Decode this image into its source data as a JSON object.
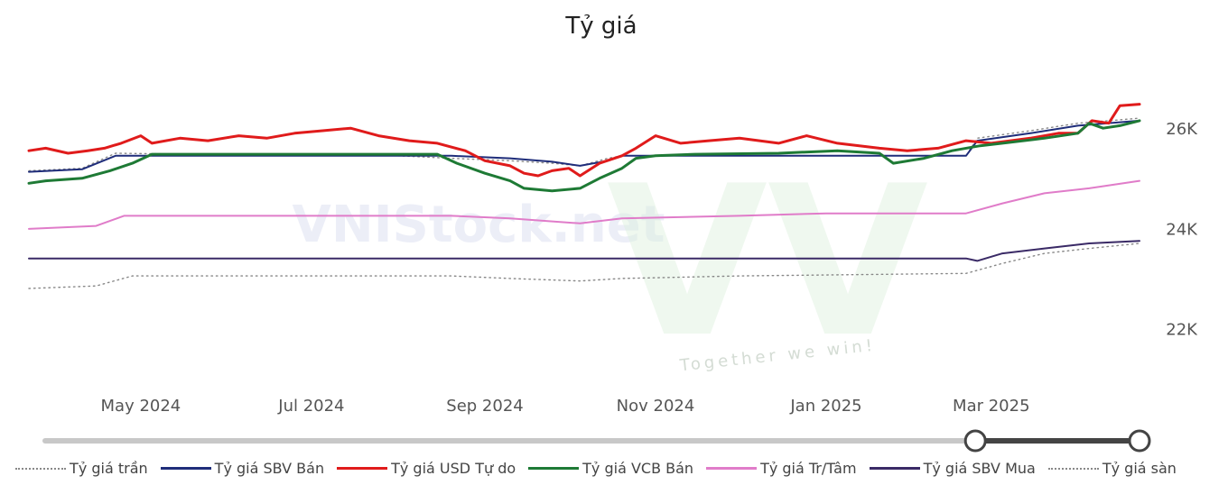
{
  "chart_data": {
    "type": "line",
    "title": "Tỷ giá",
    "xlabel": "",
    "ylabel": "",
    "x_range": [
      "2024-03-22",
      "2025-04-23"
    ],
    "ylim": [
      21000,
      27300
    ],
    "y_ticks": [
      {
        "value": 22000,
        "label": "22K"
      },
      {
        "value": 24000,
        "label": "24K"
      },
      {
        "value": 26000,
        "label": "26K"
      }
    ],
    "x_ticks": [
      {
        "date": "2024-05-01",
        "label": "May 2024"
      },
      {
        "date": "2024-07-01",
        "label": "Jul 2024"
      },
      {
        "date": "2024-09-01",
        "label": "Sep 2024"
      },
      {
        "date": "2024-11-01",
        "label": "Nov 2024"
      },
      {
        "date": "2025-01-01",
        "label": "Jan 2025"
      },
      {
        "date": "2025-03-01",
        "label": "Mar 2025"
      }
    ],
    "grid": false,
    "legend_position": "bottom",
    "series": [
      {
        "name": "Tỷ giá trần",
        "color": "#888888",
        "style": "dotted",
        "width": 1.4,
        "points": [
          [
            "2024-03-22",
            25150
          ],
          [
            "2024-04-10",
            25200
          ],
          [
            "2024-04-22",
            25500
          ],
          [
            "2024-07-01",
            25450
          ],
          [
            "2024-08-01",
            25450
          ],
          [
            "2024-08-20",
            25400
          ],
          [
            "2024-09-10",
            25350
          ],
          [
            "2024-09-25",
            25300
          ],
          [
            "2024-10-05",
            25250
          ],
          [
            "2024-10-15",
            25400
          ],
          [
            "2024-10-20",
            25450
          ],
          [
            "2025-02-20",
            25450
          ],
          [
            "2025-02-24",
            25800
          ],
          [
            "2025-03-15",
            25950
          ],
          [
            "2025-04-01",
            26100
          ],
          [
            "2025-04-23",
            26200
          ]
        ]
      },
      {
        "name": "Tỷ giá SBV Bán",
        "color": "#1f2d7a",
        "style": "solid",
        "width": 2,
        "points": [
          [
            "2024-03-22",
            25130
          ],
          [
            "2024-04-10",
            25180
          ],
          [
            "2024-04-22",
            25450
          ],
          [
            "2024-08-20",
            25450
          ],
          [
            "2024-09-10",
            25400
          ],
          [
            "2024-09-25",
            25330
          ],
          [
            "2024-10-05",
            25250
          ],
          [
            "2024-10-15",
            25350
          ],
          [
            "2024-10-20",
            25450
          ],
          [
            "2025-02-20",
            25450
          ],
          [
            "2025-02-24",
            25750
          ],
          [
            "2025-03-15",
            25900
          ],
          [
            "2025-04-01",
            26050
          ],
          [
            "2025-04-23",
            26150
          ]
        ]
      },
      {
        "name": "Tỷ giá USD Tự do",
        "color": "#e01b1b",
        "style": "solid",
        "width": 3,
        "points": [
          [
            "2024-03-22",
            25550
          ],
          [
            "2024-03-28",
            25600
          ],
          [
            "2024-04-05",
            25500
          ],
          [
            "2024-04-12",
            25550
          ],
          [
            "2024-04-18",
            25600
          ],
          [
            "2024-04-24",
            25700
          ],
          [
            "2024-05-01",
            25850
          ],
          [
            "2024-05-05",
            25700
          ],
          [
            "2024-05-15",
            25800
          ],
          [
            "2024-05-25",
            25750
          ],
          [
            "2024-06-05",
            25850
          ],
          [
            "2024-06-15",
            25800
          ],
          [
            "2024-06-25",
            25900
          ],
          [
            "2024-07-05",
            25950
          ],
          [
            "2024-07-15",
            26000
          ],
          [
            "2024-07-25",
            25850
          ],
          [
            "2024-08-05",
            25750
          ],
          [
            "2024-08-15",
            25700
          ],
          [
            "2024-08-25",
            25550
          ],
          [
            "2024-09-01",
            25350
          ],
          [
            "2024-09-10",
            25250
          ],
          [
            "2024-09-15",
            25100
          ],
          [
            "2024-09-20",
            25050
          ],
          [
            "2024-09-25",
            25150
          ],
          [
            "2024-10-01",
            25200
          ],
          [
            "2024-10-05",
            25050
          ],
          [
            "2024-10-12",
            25300
          ],
          [
            "2024-10-20",
            25450
          ],
          [
            "2024-10-25",
            25600
          ],
          [
            "2024-11-01",
            25850
          ],
          [
            "2024-11-10",
            25700
          ],
          [
            "2024-11-20",
            25750
          ],
          [
            "2024-12-01",
            25800
          ],
          [
            "2024-12-15",
            25700
          ],
          [
            "2024-12-25",
            25850
          ],
          [
            "2025-01-05",
            25700
          ],
          [
            "2025-01-20",
            25600
          ],
          [
            "2025-01-30",
            25550
          ],
          [
            "2025-02-10",
            25600
          ],
          [
            "2025-02-20",
            25750
          ],
          [
            "2025-03-01",
            25700
          ],
          [
            "2025-03-15",
            25800
          ],
          [
            "2025-03-25",
            25900
          ],
          [
            "2025-04-01",
            25900
          ],
          [
            "2025-04-06",
            26150
          ],
          [
            "2025-04-12",
            26100
          ],
          [
            "2025-04-16",
            26450
          ],
          [
            "2025-04-23",
            26480
          ]
        ]
      },
      {
        "name": "Tỷ giá VCB Bán",
        "color": "#1e7a35",
        "style": "solid",
        "width": 3,
        "points": [
          [
            "2024-03-22",
            24900
          ],
          [
            "2024-03-28",
            24950
          ],
          [
            "2024-04-10",
            25000
          ],
          [
            "2024-04-20",
            25150
          ],
          [
            "2024-04-28",
            25300
          ],
          [
            "2024-05-05",
            25480
          ],
          [
            "2024-08-15",
            25480
          ],
          [
            "2024-08-22",
            25300
          ],
          [
            "2024-09-01",
            25100
          ],
          [
            "2024-09-10",
            24950
          ],
          [
            "2024-09-15",
            24800
          ],
          [
            "2024-09-25",
            24750
          ],
          [
            "2024-10-05",
            24800
          ],
          [
            "2024-10-12",
            25000
          ],
          [
            "2024-10-20",
            25200
          ],
          [
            "2024-10-25",
            25400
          ],
          [
            "2024-11-01",
            25450
          ],
          [
            "2024-11-15",
            25480
          ],
          [
            "2024-12-15",
            25500
          ],
          [
            "2025-01-05",
            25550
          ],
          [
            "2025-01-20",
            25500
          ],
          [
            "2025-01-25",
            25300
          ],
          [
            "2025-02-05",
            25400
          ],
          [
            "2025-02-15",
            25550
          ],
          [
            "2025-02-25",
            25650
          ],
          [
            "2025-03-05",
            25700
          ],
          [
            "2025-03-20",
            25800
          ],
          [
            "2025-04-01",
            25900
          ],
          [
            "2025-04-05",
            26100
          ],
          [
            "2025-04-10",
            26000
          ],
          [
            "2025-04-16",
            26050
          ],
          [
            "2025-04-23",
            26150
          ]
        ]
      },
      {
        "name": "Tỷ giá Tr/Tâm",
        "color": "#e07cc9",
        "style": "solid",
        "width": 2,
        "points": [
          [
            "2024-03-22",
            23990
          ],
          [
            "2024-04-15",
            24050
          ],
          [
            "2024-04-25",
            24250
          ],
          [
            "2024-08-20",
            24250
          ],
          [
            "2024-09-10",
            24200
          ],
          [
            "2024-10-05",
            24100
          ],
          [
            "2024-10-20",
            24200
          ],
          [
            "2024-12-01",
            24250
          ],
          [
            "2025-01-01",
            24300
          ],
          [
            "2025-02-20",
            24300
          ],
          [
            "2025-03-05",
            24500
          ],
          [
            "2025-03-20",
            24700
          ],
          [
            "2025-04-05",
            24800
          ],
          [
            "2025-04-23",
            24950
          ]
        ]
      },
      {
        "name": "Tỷ giá SBV Mua",
        "color": "#3a2a66",
        "style": "solid",
        "width": 2,
        "points": [
          [
            "2024-03-22",
            23400
          ],
          [
            "2025-02-20",
            23400
          ],
          [
            "2025-02-24",
            23350
          ],
          [
            "2025-03-05",
            23500
          ],
          [
            "2025-03-20",
            23600
          ],
          [
            "2025-04-05",
            23700
          ],
          [
            "2025-04-23",
            23750
          ]
        ]
      },
      {
        "name": "Tỷ giá sàn",
        "color": "#888888",
        "style": "dotted",
        "width": 1.4,
        "points": [
          [
            "2024-03-22",
            22800
          ],
          [
            "2024-04-15",
            22850
          ],
          [
            "2024-04-28",
            23050
          ],
          [
            "2024-08-20",
            23050
          ],
          [
            "2024-09-10",
            23000
          ],
          [
            "2024-10-05",
            22950
          ],
          [
            "2024-10-20",
            23000
          ],
          [
            "2024-12-01",
            23050
          ],
          [
            "2025-02-20",
            23100
          ],
          [
            "2025-03-05",
            23300
          ],
          [
            "2025-03-20",
            23500
          ],
          [
            "2025-04-05",
            23600
          ],
          [
            "2025-04-23",
            23700
          ]
        ]
      }
    ]
  },
  "watermark": {
    "text": "VNIStock.net",
    "tagline": "Together we win!",
    "logo_letters": "VV"
  },
  "range_slider": {
    "start_fraction": 0.85,
    "end_fraction": 1.0
  }
}
